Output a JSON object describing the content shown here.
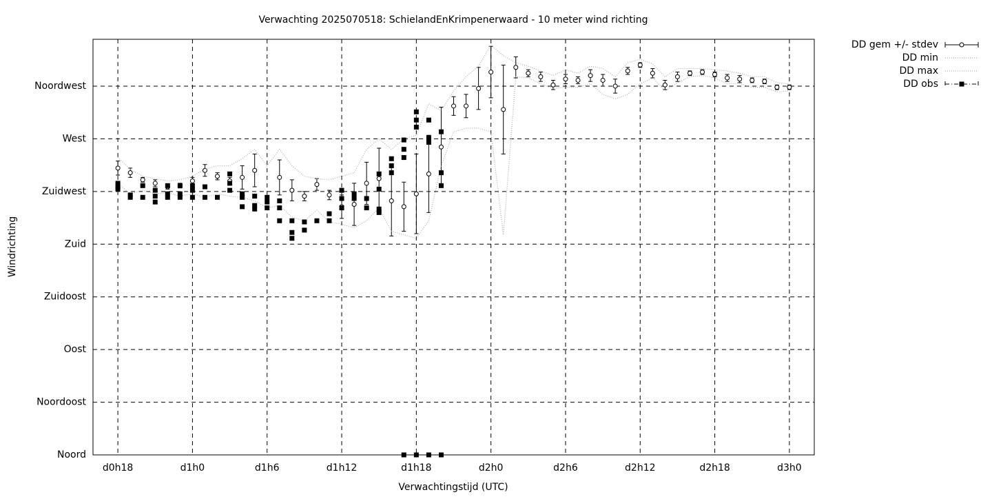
{
  "chart_data": {
    "type": "errorbar",
    "title": "Verwachting 2025070518: SchielandEnKrimpenerwaard - 10 meter wind richting",
    "x_label": "Verwachtingstijd (UTC)",
    "y_label": "Windrichting",
    "xlim": [
      16,
      74
    ],
    "ylim": [
      0,
      355
    ],
    "grid": true,
    "legend": "outside-top-right",
    "xticks": [
      {
        "value": 18,
        "label": "d0h18"
      },
      {
        "value": 24,
        "label": "d1h0"
      },
      {
        "value": 30,
        "label": "d1h6"
      },
      {
        "value": 36,
        "label": "d1h12"
      },
      {
        "value": 42,
        "label": "d1h18"
      },
      {
        "value": 48,
        "label": "d2h0"
      },
      {
        "value": 54,
        "label": "d2h6"
      },
      {
        "value": 60,
        "label": "d2h12"
      },
      {
        "value": 66,
        "label": "d2h18"
      },
      {
        "value": 72,
        "label": "d3h0"
      }
    ],
    "yticks": [
      {
        "value": 0,
        "label": "Noord"
      },
      {
        "value": 45,
        "label": "Noordoost"
      },
      {
        "value": 90,
        "label": "Oost"
      },
      {
        "value": 135,
        "label": "Zuidoost"
      },
      {
        "value": 180,
        "label": "Zuid"
      },
      {
        "value": 225,
        "label": "Zuidwest"
      },
      {
        "value": 270,
        "label": "West"
      },
      {
        "value": 315,
        "label": "Noordwest"
      }
    ],
    "x": [
      18,
      19,
      20,
      21,
      22,
      23,
      24,
      25,
      26,
      27,
      28,
      29,
      30,
      31,
      32,
      33,
      34,
      35,
      36,
      37,
      38,
      39,
      40,
      41,
      42,
      43,
      44,
      45,
      46,
      47,
      48,
      49,
      50,
      51,
      52,
      53,
      54,
      55,
      56,
      57,
      58,
      59,
      60,
      61,
      62,
      63,
      64,
      65,
      66,
      67,
      68,
      69,
      70,
      71,
      72
    ],
    "series": [
      {
        "name": "DD gem +/- stdev",
        "color": "#000000",
        "values": [
          245,
          241,
          235,
          232,
          229,
          230,
          234,
          243,
          238,
          234,
          237,
          243,
          null,
          237,
          226,
          221,
          231,
          222,
          212,
          214,
          232,
          236,
          217,
          212,
          223,
          240,
          263,
          298,
          298,
          313,
          327,
          295,
          331,
          326,
          323,
          316,
          321,
          320,
          324,
          320,
          315,
          328,
          333,
          326,
          316,
          323,
          326,
          327,
          325,
          322,
          321,
          320,
          319,
          314,
          314
        ],
        "errors": [
          6,
          4,
          2,
          3,
          2,
          2,
          3,
          5,
          3,
          3,
          10,
          14,
          null,
          15,
          9,
          4,
          5,
          4,
          10,
          18,
          18,
          26,
          30,
          21,
          34,
          33,
          34,
          8,
          10,
          18,
          22,
          38,
          9,
          3,
          4,
          4,
          4,
          3,
          5,
          5,
          6,
          3,
          2,
          4,
          4,
          4,
          2,
          2,
          2,
          3,
          3,
          2,
          2,
          2,
          2
        ]
      },
      {
        "name": "DD min",
        "color": "#aaaaaa",
        "values": [
          232,
          223,
          226,
          223,
          224,
          221,
          223,
          220,
          223,
          221,
          220,
          217,
          211,
          213,
          203,
          200,
          209,
          199,
          197,
          194,
          200,
          211,
          191,
          188,
          185,
          200,
          247,
          276,
          279,
          279,
          276,
          188,
          323,
          322,
          317,
          313,
          314,
          314,
          317,
          308,
          304,
          308,
          317,
          322,
          311,
          318,
          323,
          324,
          322,
          317,
          317,
          314,
          314,
          310,
          311
        ]
      },
      {
        "name": "DD max",
        "color": "#aaaaaa",
        "values": [
          254,
          244,
          238,
          236,
          234,
          235,
          238,
          244,
          247,
          247,
          253,
          261,
          247,
          261,
          247,
          238,
          236,
          235,
          238,
          241,
          261,
          270,
          261,
          270,
          273,
          300,
          294,
          311,
          323,
          332,
          350,
          341,
          335,
          332,
          328,
          324,
          329,
          326,
          332,
          330,
          323,
          335,
          338,
          334,
          323,
          330,
          330,
          330,
          329,
          328,
          326,
          323,
          323,
          318,
          317
        ]
      },
      {
        "name": "DD obs",
        "color": "#000000",
        "x": [
          18,
          18,
          18,
          19,
          19,
          20,
          20,
          21,
          21,
          21,
          22,
          22,
          22,
          23,
          23,
          23,
          24,
          24,
          24,
          25,
          25,
          26,
          27,
          27,
          27,
          28,
          28,
          28,
          29,
          29,
          29,
          30,
          30,
          30,
          31,
          31,
          31,
          32,
          32,
          32,
          33,
          33,
          34,
          35,
          35,
          36,
          36,
          36,
          37,
          37,
          38,
          38,
          39,
          39,
          39,
          39,
          40,
          40,
          40,
          41,
          41,
          41,
          41,
          42,
          42,
          42,
          42,
          43,
          43,
          43,
          43,
          44,
          44,
          44,
          44
        ],
        "values": [
          232,
          229,
          227,
          222,
          220,
          230,
          220,
          226,
          221,
          216,
          230,
          223,
          220,
          230,
          223,
          220,
          230,
          226,
          220,
          229,
          220,
          220,
          240,
          232,
          226,
          223,
          220,
          212,
          221,
          213,
          210,
          220,
          216,
          211,
          217,
          211,
          200,
          200,
          190,
          185,
          199,
          192,
          200,
          206,
          200,
          226,
          219,
          211,
          223,
          219,
          219,
          211,
          240,
          227,
          210,
          207,
          253,
          247,
          241,
          269,
          261,
          254,
          0,
          293,
          286,
          280,
          0,
          286,
          271,
          267,
          0,
          276,
          241,
          230,
          0
        ]
      }
    ]
  }
}
